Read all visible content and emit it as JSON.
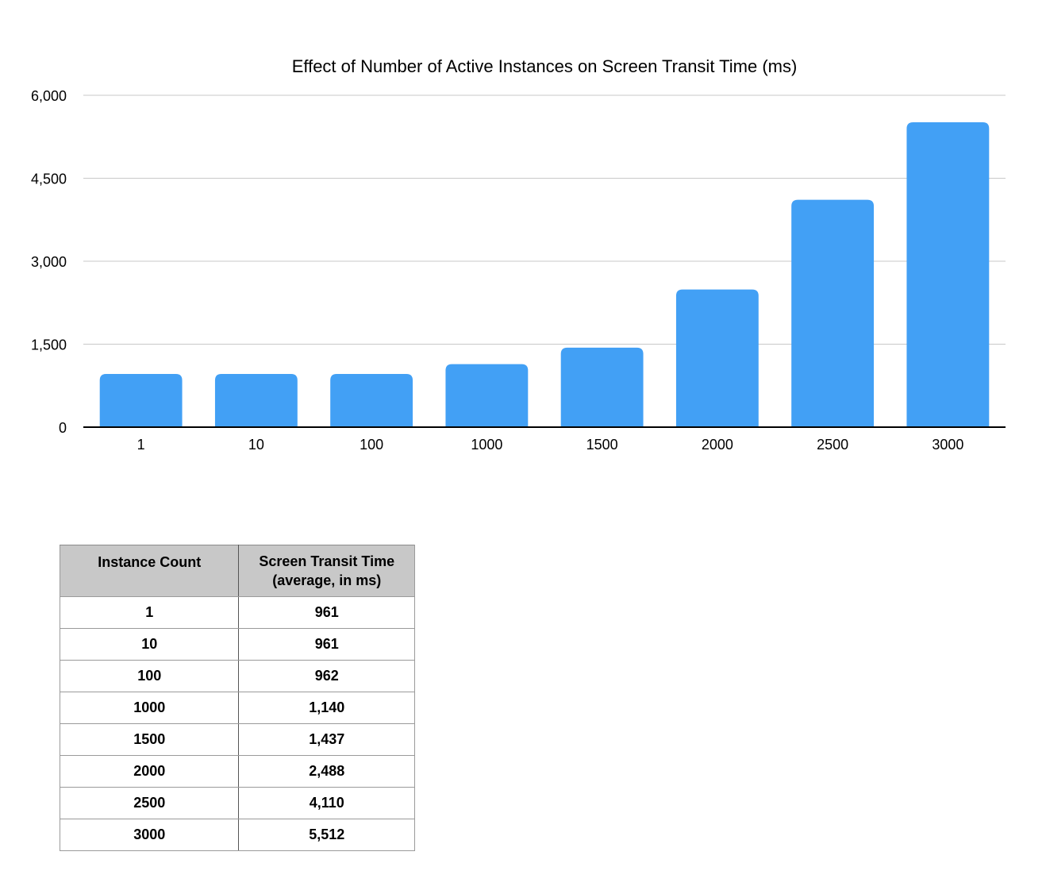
{
  "chart_data": {
    "type": "bar",
    "title": "Effect of Number of Active Instances on Screen Transit Time (ms)",
    "xlabel": "",
    "ylabel": "",
    "categories": [
      "1",
      "10",
      "100",
      "1000",
      "1500",
      "2000",
      "2500",
      "3000"
    ],
    "values": [
      961,
      961,
      962,
      1140,
      1437,
      2488,
      4110,
      5512
    ],
    "ylim": [
      0,
      6000
    ],
    "yticks": [
      0,
      1500,
      3000,
      4500,
      6000
    ],
    "ytick_labels": [
      "0",
      "1,500",
      "3,000",
      "4,500",
      "6,000"
    ],
    "grid": true,
    "legend": "none",
    "bar_color": "#42a0f5"
  },
  "table": {
    "headers": {
      "instance_count": "Instance Count",
      "transit_line1": "Screen Transit Time",
      "transit_line2": "(average, in ms)"
    },
    "rows": [
      {
        "count": "1",
        "time": "961"
      },
      {
        "count": "10",
        "time": "961"
      },
      {
        "count": "100",
        "time": "962"
      },
      {
        "count": "1000",
        "time": "1,140"
      },
      {
        "count": "1500",
        "time": "1,437"
      },
      {
        "count": "2000",
        "time": "2,488"
      },
      {
        "count": "2500",
        "time": "4,110"
      },
      {
        "count": "3000",
        "time": "5,512"
      }
    ]
  }
}
